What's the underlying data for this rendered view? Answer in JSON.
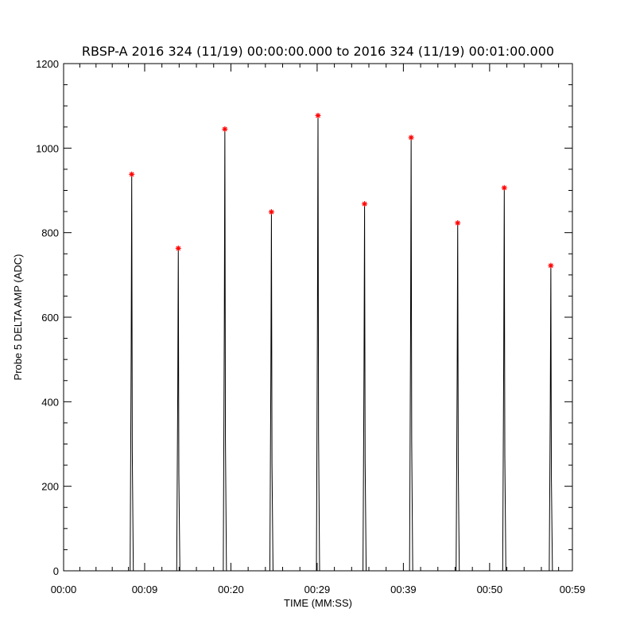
{
  "chart_data": {
    "type": "line",
    "title": "RBSP-A 2016 324 (11/19) 00:00:00.000 to 2016 324 (11/19) 00:01:00.000",
    "xlabel": "TIME (MM:SS)",
    "ylabel": "Probe 5 DELTA AMP (ADC)",
    "xlim": [
      0,
      59
    ],
    "ylim": [
      0,
      1200
    ],
    "x_tick_values": [
      0,
      9.4,
      19.4,
      29.4,
      39.4,
      49.4,
      59.4
    ],
    "x_tick_labels": [
      "00:00",
      "00:09",
      "00:20",
      "00:29",
      "00:39",
      "00:50",
      "00:59"
    ],
    "y_ticks": [
      0,
      200,
      400,
      600,
      800,
      1000,
      1200
    ],
    "peak_times": [
      7.9,
      13.3,
      18.7,
      24.1,
      29.5,
      34.9,
      40.3,
      45.7,
      51.1,
      56.5
    ],
    "peak_values": [
      938,
      763,
      1045,
      849,
      1077,
      868,
      1025,
      823,
      906,
      722
    ],
    "series": [
      {
        "marker_color": "#ff0000",
        "line_color": "#000000"
      }
    ],
    "grid": false
  }
}
